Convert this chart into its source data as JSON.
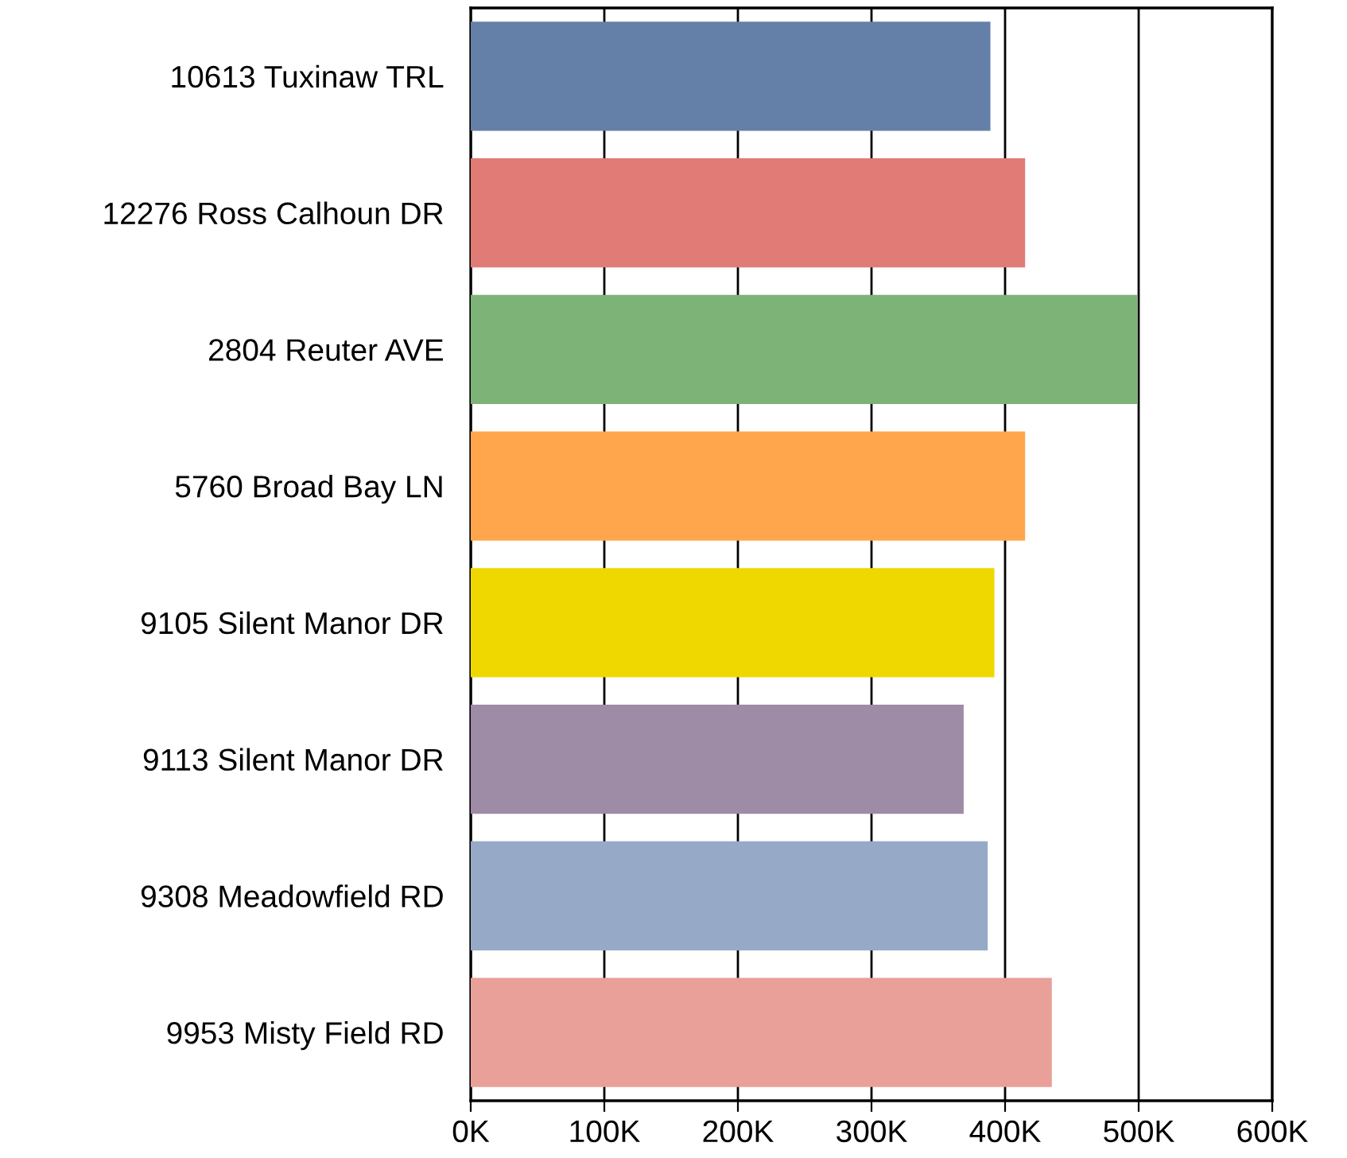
{
  "chart_data": {
    "type": "bar",
    "orientation": "horizontal",
    "categories": [
      "10613 Tuxinaw TRL",
      "12276 Ross Calhoun DR",
      "2804 Reuter AVE",
      "5760 Broad Bay LN",
      "9105 Silent Manor DR",
      "9113 Silent Manor DR",
      "9308 Meadowfield RD",
      "9953 Misty Field RD"
    ],
    "values": [
      389000,
      415000,
      499000,
      415000,
      392000,
      369000,
      387000,
      435000
    ],
    "colors": [
      "#6480a8",
      "#e07b76",
      "#7db376",
      "#ffa64d",
      "#eed800",
      "#9e8ba5",
      "#96aac8",
      "#e8a098"
    ],
    "xlim": [
      0,
      600000
    ],
    "xticks": [
      {
        "value": 0,
        "label": "0K"
      },
      {
        "value": 100000,
        "label": "100K"
      },
      {
        "value": 200000,
        "label": "200K"
      },
      {
        "value": 300000,
        "label": "300K"
      },
      {
        "value": 400000,
        "label": "400K"
      },
      {
        "value": 500000,
        "label": "500K"
      },
      {
        "value": 600000,
        "label": "600K"
      }
    ],
    "grid": "x",
    "legend": false
  }
}
